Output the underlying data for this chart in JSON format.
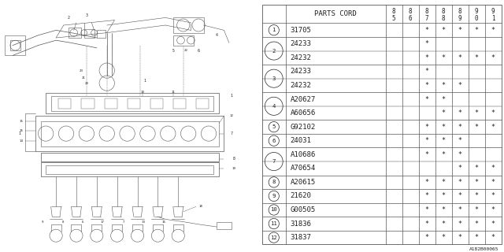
{
  "parts_cord_label": "PARTS CORD",
  "year_cols": [
    "8\n5",
    "8\n6",
    "8\n7",
    "8\n8",
    "8\n9",
    "9\n0",
    "9\n1"
  ],
  "rows": [
    {
      "num": 1,
      "parts": [
        "31705"
      ],
      "marks": [
        [
          0,
          0,
          1,
          1,
          1,
          1,
          1
        ]
      ]
    },
    {
      "num": 2,
      "parts": [
        "24233",
        "24232"
      ],
      "marks": [
        [
          0,
          0,
          1,
          0,
          0,
          0,
          0
        ],
        [
          0,
          0,
          1,
          1,
          1,
          1,
          1
        ]
      ]
    },
    {
      "num": 3,
      "parts": [
        "24233",
        "24232"
      ],
      "marks": [
        [
          0,
          0,
          1,
          0,
          0,
          0,
          0
        ],
        [
          0,
          0,
          1,
          1,
          1,
          0,
          0
        ]
      ]
    },
    {
      "num": 4,
      "parts": [
        "A20627",
        "A60656"
      ],
      "marks": [
        [
          0,
          0,
          1,
          1,
          0,
          0,
          0
        ],
        [
          0,
          0,
          0,
          1,
          1,
          1,
          1
        ]
      ]
    },
    {
      "num": 5,
      "parts": [
        "G92102"
      ],
      "marks": [
        [
          0,
          0,
          1,
          1,
          1,
          1,
          1
        ]
      ]
    },
    {
      "num": 6,
      "parts": [
        "24031"
      ],
      "marks": [
        [
          0,
          0,
          1,
          1,
          1,
          0,
          0
        ]
      ]
    },
    {
      "num": 7,
      "parts": [
        "A10686",
        "A70654"
      ],
      "marks": [
        [
          0,
          0,
          1,
          1,
          1,
          0,
          0
        ],
        [
          0,
          0,
          0,
          0,
          1,
          1,
          1
        ]
      ]
    },
    {
      "num": 8,
      "parts": [
        "A20615"
      ],
      "marks": [
        [
          0,
          0,
          1,
          1,
          1,
          1,
          1
        ]
      ]
    },
    {
      "num": 9,
      "parts": [
        "21620"
      ],
      "marks": [
        [
          0,
          0,
          1,
          1,
          1,
          1,
          1
        ]
      ]
    },
    {
      "num": 10,
      "parts": [
        "G00505"
      ],
      "marks": [
        [
          0,
          0,
          1,
          1,
          1,
          1,
          1
        ]
      ]
    },
    {
      "num": 11,
      "parts": [
        "31836"
      ],
      "marks": [
        [
          0,
          0,
          1,
          1,
          1,
          1,
          1
        ]
      ]
    },
    {
      "num": 12,
      "parts": [
        "31837"
      ],
      "marks": [
        [
          0,
          0,
          1,
          1,
          1,
          1,
          1
        ]
      ]
    }
  ],
  "bg_color": "#ffffff",
  "line_color": "#555555",
  "text_color": "#222222",
  "mark_char": "*",
  "diagram_label": "A182B00065",
  "font_size": 6.5,
  "header_font_size": 6.5
}
